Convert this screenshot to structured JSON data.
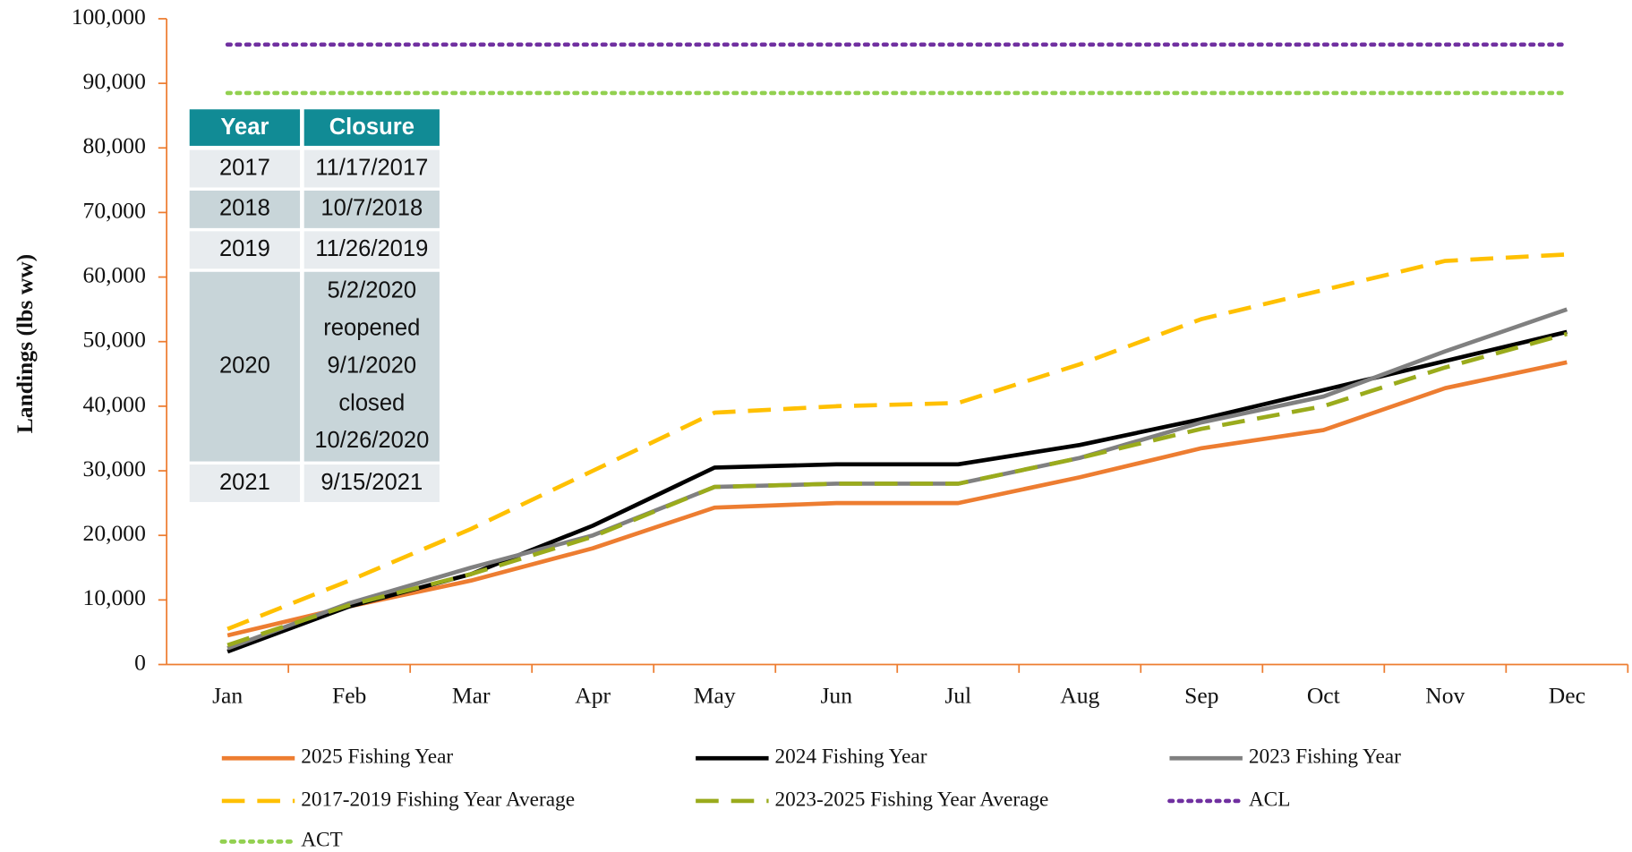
{
  "chart_data": {
    "type": "line",
    "ylabel": "Landings (lbs ww)",
    "categories": [
      "Jan",
      "Feb",
      "Mar",
      "Apr",
      "May",
      "Jun",
      "Jul",
      "Aug",
      "Sep",
      "Oct",
      "Nov",
      "Dec"
    ],
    "ylim": [
      0,
      100000
    ],
    "yticks": [
      0,
      {
        "value": 10000,
        "label": "10,000"
      },
      {
        "value": 20000,
        "label": "20,000"
      },
      {
        "value": 30000,
        "label": "30,000"
      },
      {
        "value": 40000,
        "label": "40,000"
      },
      {
        "value": 50000,
        "label": "50,000"
      },
      {
        "value": 60000,
        "label": "60,000"
      },
      {
        "value": 70000,
        "label": "70,000"
      },
      {
        "value": 80000,
        "label": "80,000"
      },
      {
        "value": 90000,
        "label": "90,000"
      },
      {
        "value": 100000,
        "label": "100,000"
      }
    ],
    "axis_color": "#ed7d31",
    "series": [
      {
        "name": "2025 Fishing Year",
        "color": "#ed7d31",
        "style": "solid",
        "values": [
          4500,
          9000,
          13000,
          18000,
          24300,
          25000,
          25000,
          29000,
          33500,
          36300,
          42800,
          46800
        ]
      },
      {
        "name": "2024 Fishing Year",
        "color": "#000000",
        "style": "solid",
        "values": [
          2000,
          9000,
          14000,
          21500,
          30500,
          31000,
          31000,
          34000,
          38000,
          42500,
          47000,
          51500
        ]
      },
      {
        "name": "2023 Fishing Year",
        "color": "#808080",
        "style": "solid",
        "values": [
          2500,
          9500,
          15000,
          20000,
          27500,
          28000,
          28000,
          32000,
          37500,
          41500,
          48500,
          55000
        ]
      },
      {
        "name": "2017-2019 Fishing Year Average",
        "color": "#ffc000",
        "style": "dashed",
        "values": [
          5500,
          13000,
          21000,
          30000,
          39000,
          40000,
          40500,
          46500,
          53500,
          58000,
          62500,
          63500
        ]
      },
      {
        "name": "2023-2025 Fishing Year Average",
        "color": "#9aab1c",
        "style": "dashed",
        "values": [
          3000,
          9200,
          14000,
          19800,
          27500,
          28000,
          28000,
          32000,
          36500,
          40000,
          46000,
          51200
        ]
      },
      {
        "name": "ACL",
        "color": "#7030a0",
        "style": "dotted",
        "values": [
          96000,
          96000,
          96000,
          96000,
          96000,
          96000,
          96000,
          96000,
          96000,
          96000,
          96000,
          96000
        ]
      },
      {
        "name": "ACT",
        "color": "#92d050",
        "style": "dotted",
        "values": [
          88500,
          88500,
          88500,
          88500,
          88500,
          88500,
          88500,
          88500,
          88500,
          88500,
          88500,
          88500
        ]
      }
    ]
  },
  "table": {
    "header": [
      "Year",
      "Closure"
    ],
    "rows": [
      [
        "2017",
        [
          "11/17/2017"
        ]
      ],
      [
        "2018",
        [
          "10/7/2018"
        ]
      ],
      [
        "2019",
        [
          "11/26/2019"
        ]
      ],
      [
        "2020",
        [
          "5/2/2020",
          "reopened",
          "9/1/2020",
          "closed",
          "10/26/2020"
        ]
      ],
      [
        "2021",
        [
          "9/15/2021"
        ]
      ]
    ]
  }
}
